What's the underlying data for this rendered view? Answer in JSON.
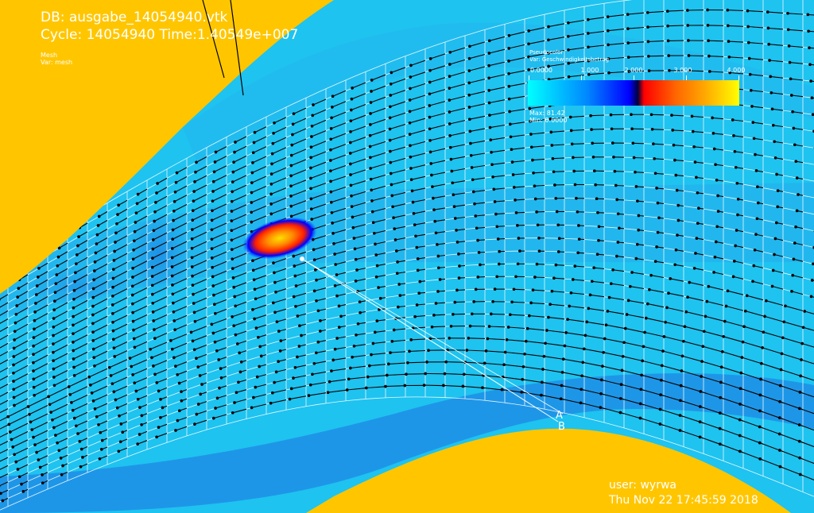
{
  "header": {
    "db_title": "DB: ausgabe_14054940.vtk",
    "cycle_line": "Cycle: 14054940 Time:1.40549e+007"
  },
  "mesh_legend": {
    "name": "Mesh",
    "var": "Var: mesh"
  },
  "pseudocolor_legend": {
    "type": "Pseudocolor",
    "var": "Var: Geschwindigkeitsbetrag",
    "ticks": [
      "0.0000",
      "1.000",
      "2.000",
      "3.000",
      "4.000"
    ],
    "max": "Max: 81.42",
    "min": "Min: 0.0000",
    "colors": [
      "#00ffff",
      "#0088ff",
      "#0000ff",
      "#ff0000",
      "#ff6600",
      "#ffaa00",
      "#ffff00"
    ]
  },
  "lineout": {
    "point_a": "A",
    "point_b": "B"
  },
  "footer": {
    "user": "user: wyrwa",
    "timestamp": "Thu Nov 22 17:45:59 2018"
  },
  "colors": {
    "land": "#ffc600",
    "water": "#19dcf0",
    "water_dark": "#1e96e6",
    "grid": "#ffffff",
    "vectors": "#000000"
  }
}
